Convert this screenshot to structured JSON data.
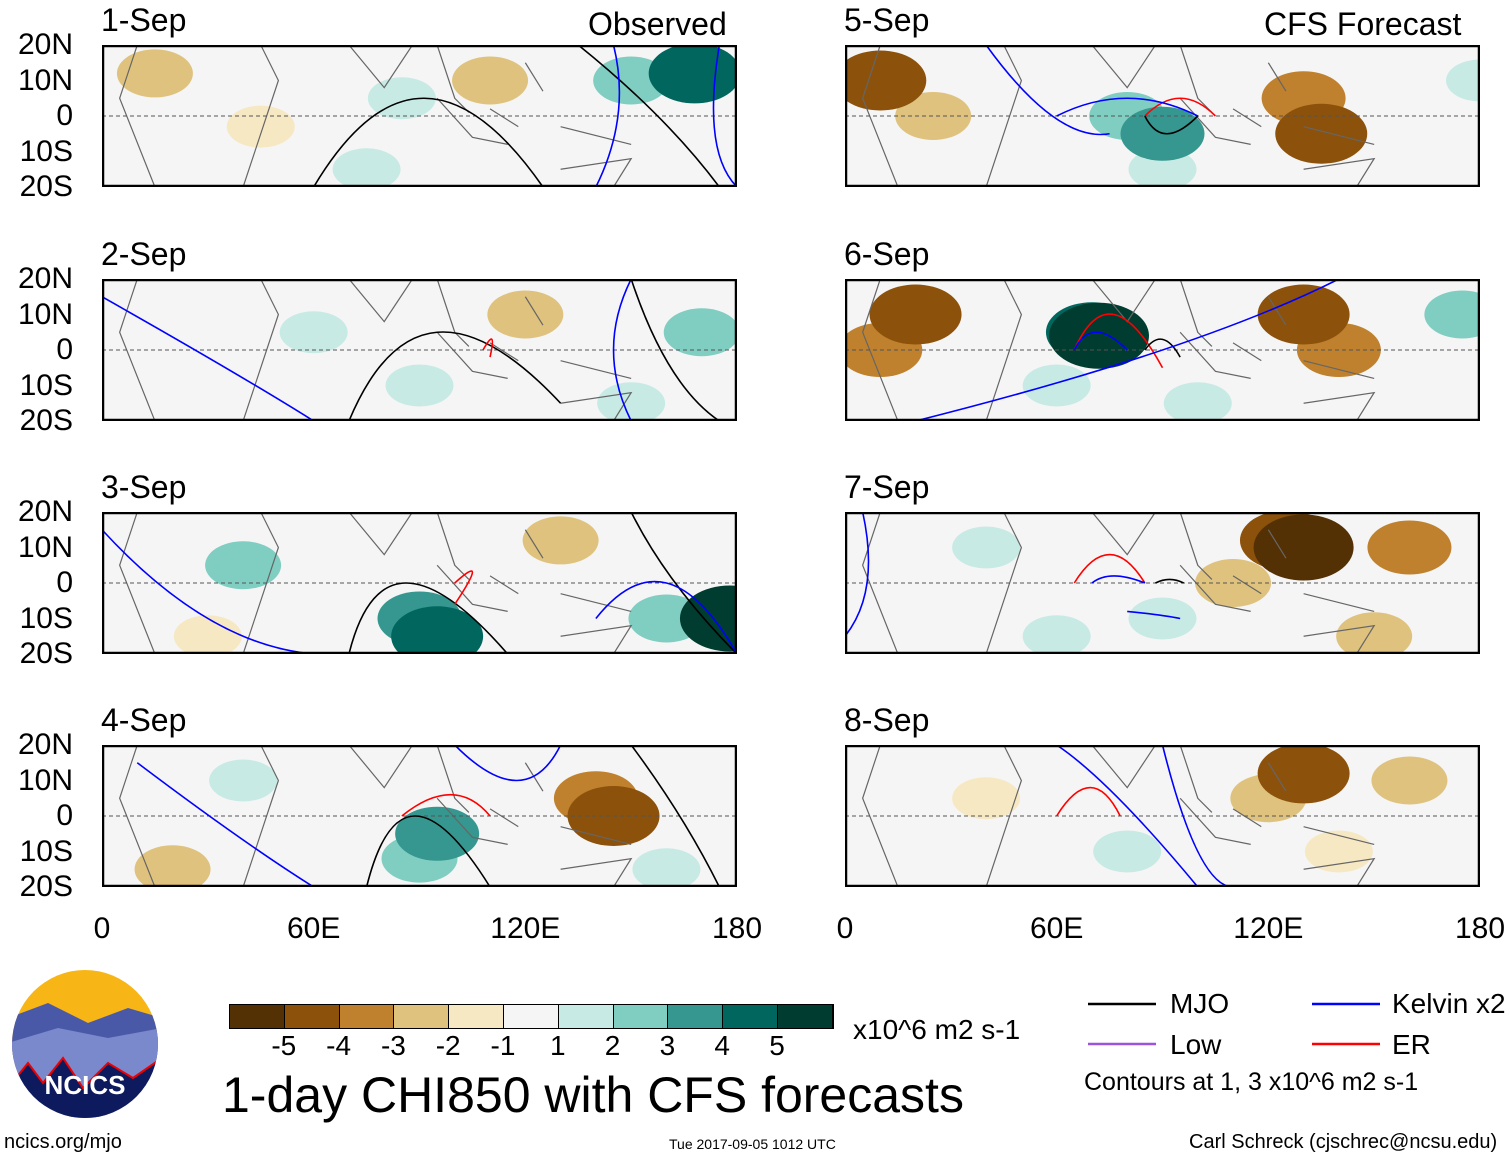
{
  "headers": {
    "observed": "Observed",
    "forecast": "CFS Forecast"
  },
  "y_ticks": [
    "20N",
    "10N",
    "0",
    "10S",
    "20S"
  ],
  "x_ticks": [
    "0",
    "60E",
    "120E",
    "180"
  ],
  "colorbar": {
    "labels": [
      "-5",
      "-4",
      "-3",
      "-2",
      "-1",
      "1",
      "2",
      "3",
      "4",
      "5"
    ],
    "colors": [
      "#543005",
      "#8c510a",
      "#bf812d",
      "#dfc27d",
      "#f6e8c3",
      "#f5f5f5",
      "#c7eae5",
      "#80cdc1",
      "#35978f",
      "#01665e",
      "#003c30"
    ],
    "units": "x10^6 m2 s-1"
  },
  "legend": {
    "mjo": "MJO",
    "kelvin": "Kelvin x2",
    "low": "Low",
    "er": "ER",
    "colors": {
      "mjo": "#000000",
      "kelvin": "#0000ff",
      "low": "#9955dd",
      "er": "#ff0000"
    },
    "contours_note": "Contours at 1, 3 x10^6 m2 s-1"
  },
  "title": "1-day CHI850 with CFS forecasts",
  "logo_text": "NCICS",
  "footer": {
    "left": "ncics.org/mjo",
    "center": "Tue 2017-09-05 1012 UTC",
    "right": "Carl Schreck (cjschrec@ncsu.edu)"
  },
  "chart_data": {
    "type": "heatmap",
    "lon_range": [
      0,
      180
    ],
    "lat_range": [
      -20,
      20
    ],
    "panels": [
      {
        "date": "1-Sep",
        "blobs": [
          [
            15,
            12,
            -2
          ],
          [
            45,
            -3,
            -1
          ],
          [
            110,
            10,
            -2
          ],
          [
            75,
            -15,
            1
          ],
          [
            150,
            10,
            2
          ],
          [
            168,
            12,
            4
          ],
          [
            85,
            5,
            1
          ]
        ],
        "contours": [
          [
            "mjo",
            60,
            -20,
            90,
            5,
            125,
            -20
          ],
          [
            "mjo",
            135,
            20,
            160,
            0,
            175,
            -20
          ],
          [
            "kelvin",
            140,
            -20,
            150,
            0,
            145,
            20
          ],
          [
            "kelvin",
            175,
            20,
            170,
            -5,
            180,
            -20
          ]
        ]
      },
      {
        "date": "2-Sep",
        "blobs": [
          [
            120,
            10,
            -2
          ],
          [
            170,
            5,
            2
          ],
          [
            60,
            5,
            1
          ],
          [
            90,
            -10,
            1
          ],
          [
            150,
            -15,
            1
          ]
        ],
        "contours": [
          [
            "mjo",
            70,
            -20,
            90,
            5,
            130,
            -15
          ],
          [
            "mjo",
            150,
            20,
            160,
            -5,
            175,
            -20
          ],
          [
            "er",
            108,
            0,
            112,
            3,
            110,
            -2
          ],
          [
            "kelvin",
            0,
            15,
            40,
            -5,
            60,
            -20
          ],
          [
            "kelvin",
            150,
            20,
            140,
            0,
            150,
            -20
          ]
        ]
      },
      {
        "date": "3-Sep",
        "blobs": [
          [
            130,
            12,
            -2
          ],
          [
            90,
            -10,
            3
          ],
          [
            95,
            -15,
            4
          ],
          [
            40,
            5,
            2
          ],
          [
            160,
            -10,
            2
          ],
          [
            178,
            -10,
            5
          ],
          [
            30,
            -15,
            -1
          ]
        ],
        "contours": [
          [
            "mjo",
            70,
            -20,
            80,
            0,
            115,
            -20
          ],
          [
            "mjo",
            150,
            20,
            160,
            0,
            180,
            -20
          ],
          [
            "er",
            100,
            0,
            110,
            3,
            100,
            -6
          ],
          [
            "kelvin",
            0,
            15,
            30,
            -10,
            60,
            -20
          ],
          [
            "kelvin",
            140,
            -10,
            160,
            0,
            180,
            -20
          ]
        ]
      },
      {
        "date": "4-Sep",
        "blobs": [
          [
            140,
            5,
            -3
          ],
          [
            145,
            0,
            -4
          ],
          [
            95,
            -5,
            3
          ],
          [
            90,
            -12,
            2
          ],
          [
            40,
            10,
            1
          ],
          [
            20,
            -15,
            -2
          ],
          [
            160,
            -15,
            1
          ]
        ],
        "contours": [
          [
            "mjo",
            75,
            -20,
            85,
            0,
            110,
            -20
          ],
          [
            "mjo",
            150,
            20,
            165,
            0,
            175,
            -20
          ],
          [
            "er",
            85,
            0,
            100,
            6,
            110,
            0
          ],
          [
            "kelvin",
            10,
            15,
            40,
            -5,
            60,
            -20
          ],
          [
            "kelvin",
            100,
            20,
            120,
            10,
            130,
            20
          ]
        ]
      },
      {
        "date": "5-Sep",
        "blobs": [
          [
            10,
            10,
            -4
          ],
          [
            25,
            0,
            -2
          ],
          [
            130,
            5,
            -3
          ],
          [
            135,
            -5,
            -4
          ],
          [
            80,
            0,
            2
          ],
          [
            90,
            -5,
            3
          ],
          [
            90,
            -15,
            1
          ],
          [
            180,
            10,
            1
          ]
        ],
        "contours": [
          [
            "er",
            85,
            0,
            95,
            5,
            105,
            0
          ],
          [
            "mjo",
            85,
            0,
            90,
            -5,
            100,
            0
          ],
          [
            "kelvin",
            60,
            0,
            80,
            5,
            100,
            0
          ],
          [
            "kelvin",
            40,
            20,
            60,
            0,
            75,
            -5
          ]
        ]
      },
      {
        "date": "6-Sep",
        "blobs": [
          [
            20,
            10,
            -4
          ],
          [
            10,
            0,
            -3
          ],
          [
            130,
            10,
            -4
          ],
          [
            140,
            0,
            -3
          ],
          [
            70,
            5,
            4
          ],
          [
            72,
            4,
            5
          ],
          [
            60,
            -10,
            1
          ],
          [
            100,
            -15,
            1
          ],
          [
            175,
            10,
            2
          ]
        ],
        "contours": [
          [
            "er",
            65,
            0,
            75,
            10,
            90,
            -5
          ],
          [
            "kelvin",
            65,
            0,
            70,
            5,
            80,
            0
          ],
          [
            "mjo",
            85,
            0,
            90,
            3,
            95,
            -2
          ],
          [
            "kelvin",
            20,
            -20,
            100,
            0,
            140,
            20
          ]
        ]
      },
      {
        "date": "7-Sep",
        "blobs": [
          [
            130,
            10,
            -5
          ],
          [
            125,
            12,
            -4
          ],
          [
            160,
            10,
            -3
          ],
          [
            110,
            0,
            -2
          ],
          [
            90,
            -10,
            1
          ],
          [
            40,
            10,
            1
          ],
          [
            60,
            -15,
            1
          ],
          [
            150,
            -15,
            -2
          ]
        ],
        "contours": [
          [
            "er",
            65,
            0,
            75,
            8,
            85,
            0
          ],
          [
            "kelvin",
            70,
            0,
            75,
            2,
            85,
            0
          ],
          [
            "kelvin",
            80,
            -8,
            90,
            -9,
            95,
            -10
          ],
          [
            "mjo",
            88,
            0,
            92,
            1,
            96,
            0
          ],
          [
            "kelvin",
            0,
            -15,
            10,
            0,
            5,
            20
          ]
        ]
      },
      {
        "date": "8-Sep",
        "blobs": [
          [
            130,
            12,
            -4
          ],
          [
            120,
            5,
            -2
          ],
          [
            160,
            10,
            -2
          ],
          [
            40,
            5,
            -1
          ],
          [
            140,
            -10,
            -1
          ],
          [
            80,
            -10,
            1
          ]
        ],
        "contours": [
          [
            "er",
            60,
            0,
            70,
            8,
            78,
            0
          ],
          [
            "kelvin",
            60,
            20,
            75,
            5,
            100,
            -20
          ],
          [
            "kelvin",
            90,
            20,
            100,
            -10,
            110,
            -20
          ]
        ]
      }
    ]
  }
}
